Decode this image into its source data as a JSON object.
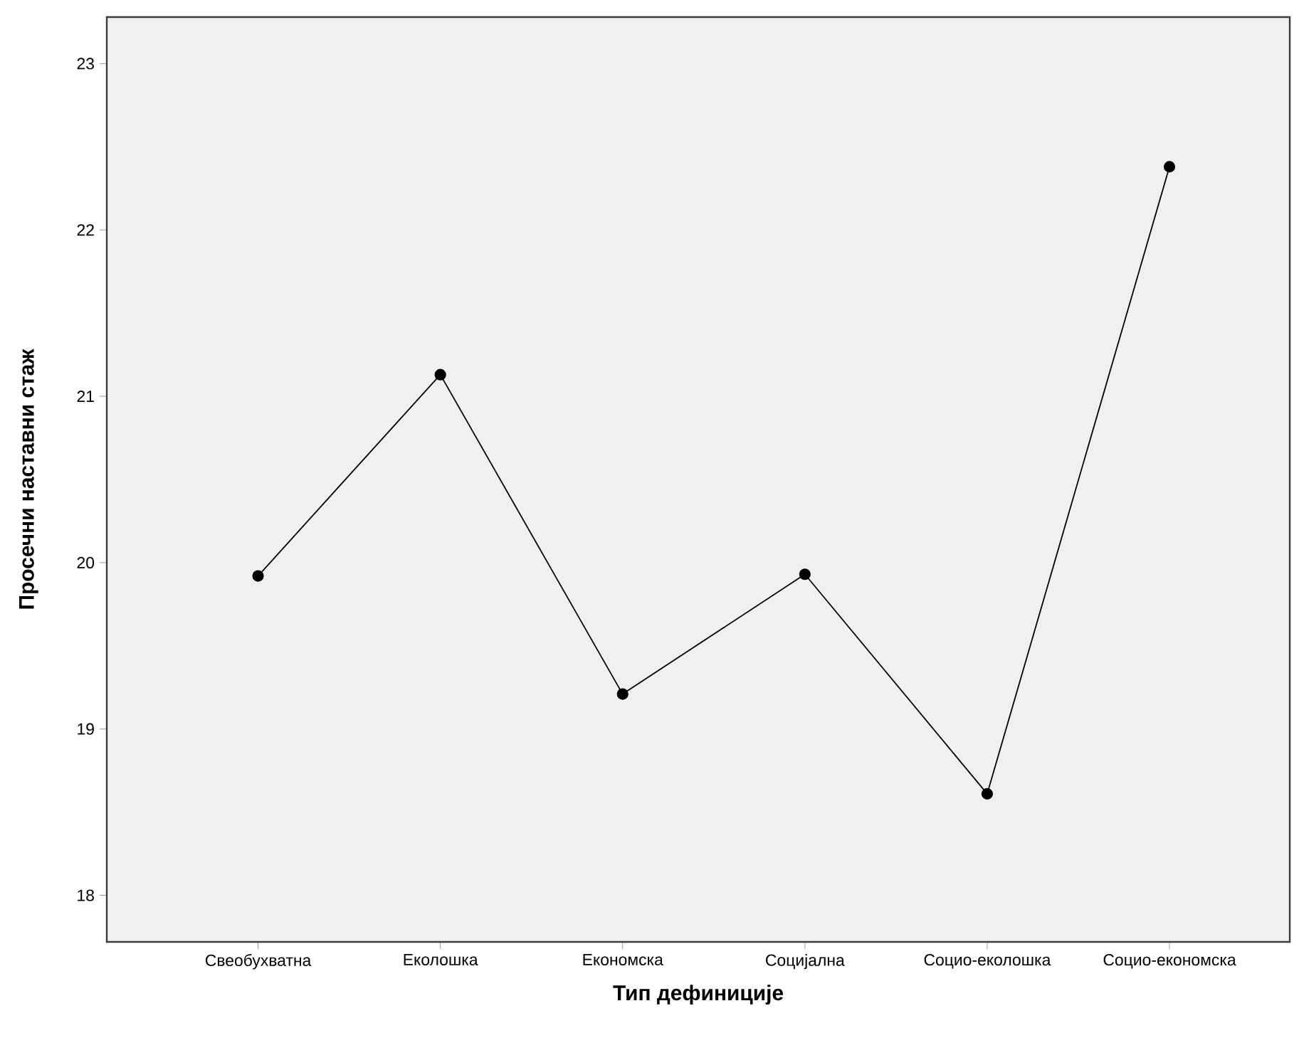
{
  "chart_data": {
    "type": "line",
    "xlabel": "Тип дефиниције",
    "ylabel": "Просечни наставни стаж",
    "categories": [
      "Свеобухватна",
      "Еколошка",
      "Економска",
      "Социјална",
      "Социо-еколошка",
      "Социо-економска"
    ],
    "values": [
      19.92,
      21.13,
      19.21,
      19.93,
      18.61,
      22.38
    ],
    "color": "#000000",
    "marker": "circle",
    "line_style": "solid",
    "ylim": [
      17.72,
      23.28
    ],
    "yticks": [
      18,
      19,
      20,
      21,
      22,
      23
    ],
    "grid": false
  }
}
